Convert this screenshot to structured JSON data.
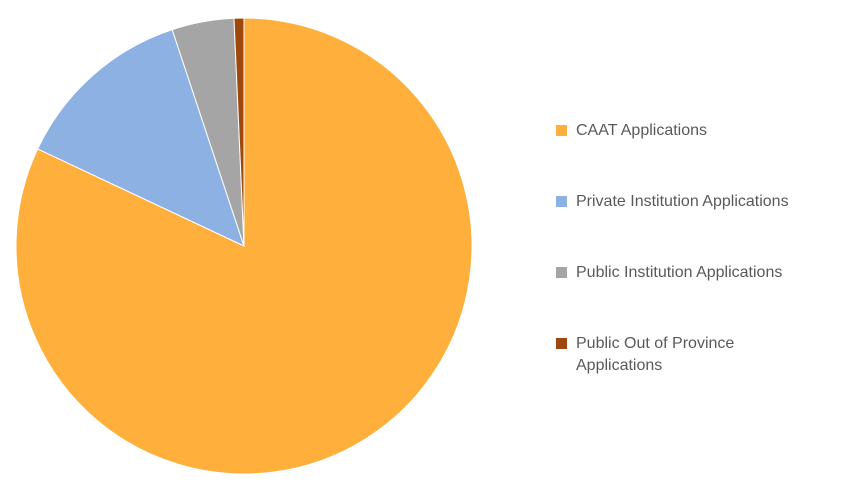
{
  "chart_data": {
    "type": "pie",
    "categories": [
      "CAAT Applications",
      "Private Institution Applications",
      "Public Institution Applications",
      "Public Out of Province Applications"
    ],
    "values": [
      82,
      12.9,
      4.4,
      0.7
    ],
    "colors": [
      "#FFAF3B",
      "#8DB1E2",
      "#A5A5A5",
      "#9E480E"
    ],
    "legend": "right"
  }
}
